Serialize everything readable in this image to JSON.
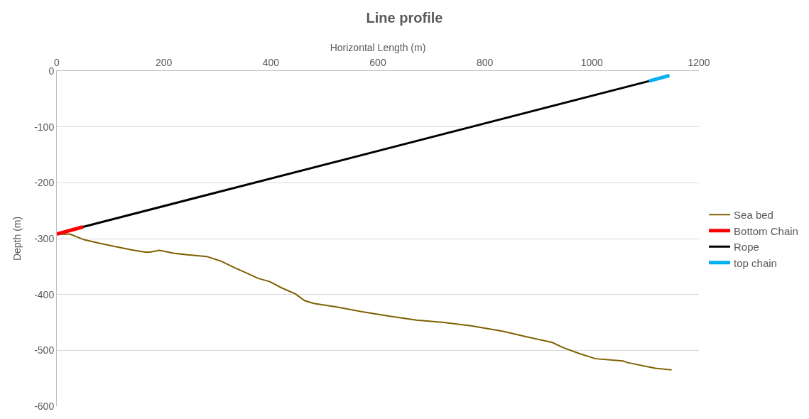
{
  "chart_data": {
    "type": "line",
    "title": "Line profile",
    "xlabel": "Horizontal Length (m)",
    "ylabel": "Depth (m)",
    "xlim": [
      0,
      1200
    ],
    "xticks": [
      0,
      200,
      400,
      600,
      800,
      1000,
      1200
    ],
    "ylim": [
      -600,
      0
    ],
    "yticks": [
      -600,
      -500,
      -400,
      -300,
      -200,
      -100,
      0
    ],
    "grid": "y",
    "legend": "right",
    "marker": "none",
    "line_style": "solid",
    "series": [
      {
        "name": "Sea bed",
        "color": "#7f6000",
        "x": [
          1,
          25,
          51,
          78,
          108,
          139,
          165,
          174,
          192,
          218,
          244,
          280,
          306,
          332,
          358,
          376,
          398,
          420,
          446,
          463,
          480,
          521,
          571,
          622,
          672,
          723,
          774,
          834,
          875,
          926,
          946,
          977,
          1007,
          1058,
          1067,
          1118,
          1149
        ],
        "values": [
          -292,
          -292,
          -302,
          -308,
          -314,
          -320,
          -324,
          -324,
          -321,
          -326,
          -329,
          -332,
          -340,
          -352,
          -363,
          -371,
          -377,
          -388,
          -399,
          -411,
          -416,
          -422,
          -431,
          -439,
          -446,
          -450,
          -456,
          -466,
          -475,
          -486,
          -495,
          -506,
          -515,
          -519,
          -522,
          -532,
          -535
        ]
      },
      {
        "name": "Bottom Chain",
        "color": "#ff0000",
        "x": [
          0,
          49
        ],
        "values": [
          -292,
          -279
        ]
      },
      {
        "name": "Rope",
        "color": "#000000",
        "x": [
          49,
          1107
        ],
        "values": [
          -279,
          -18
        ]
      },
      {
        "name": "top chain",
        "color": "#00b0f0",
        "x": [
          1107,
          1145
        ],
        "values": [
          -18,
          -8
        ]
      }
    ]
  }
}
